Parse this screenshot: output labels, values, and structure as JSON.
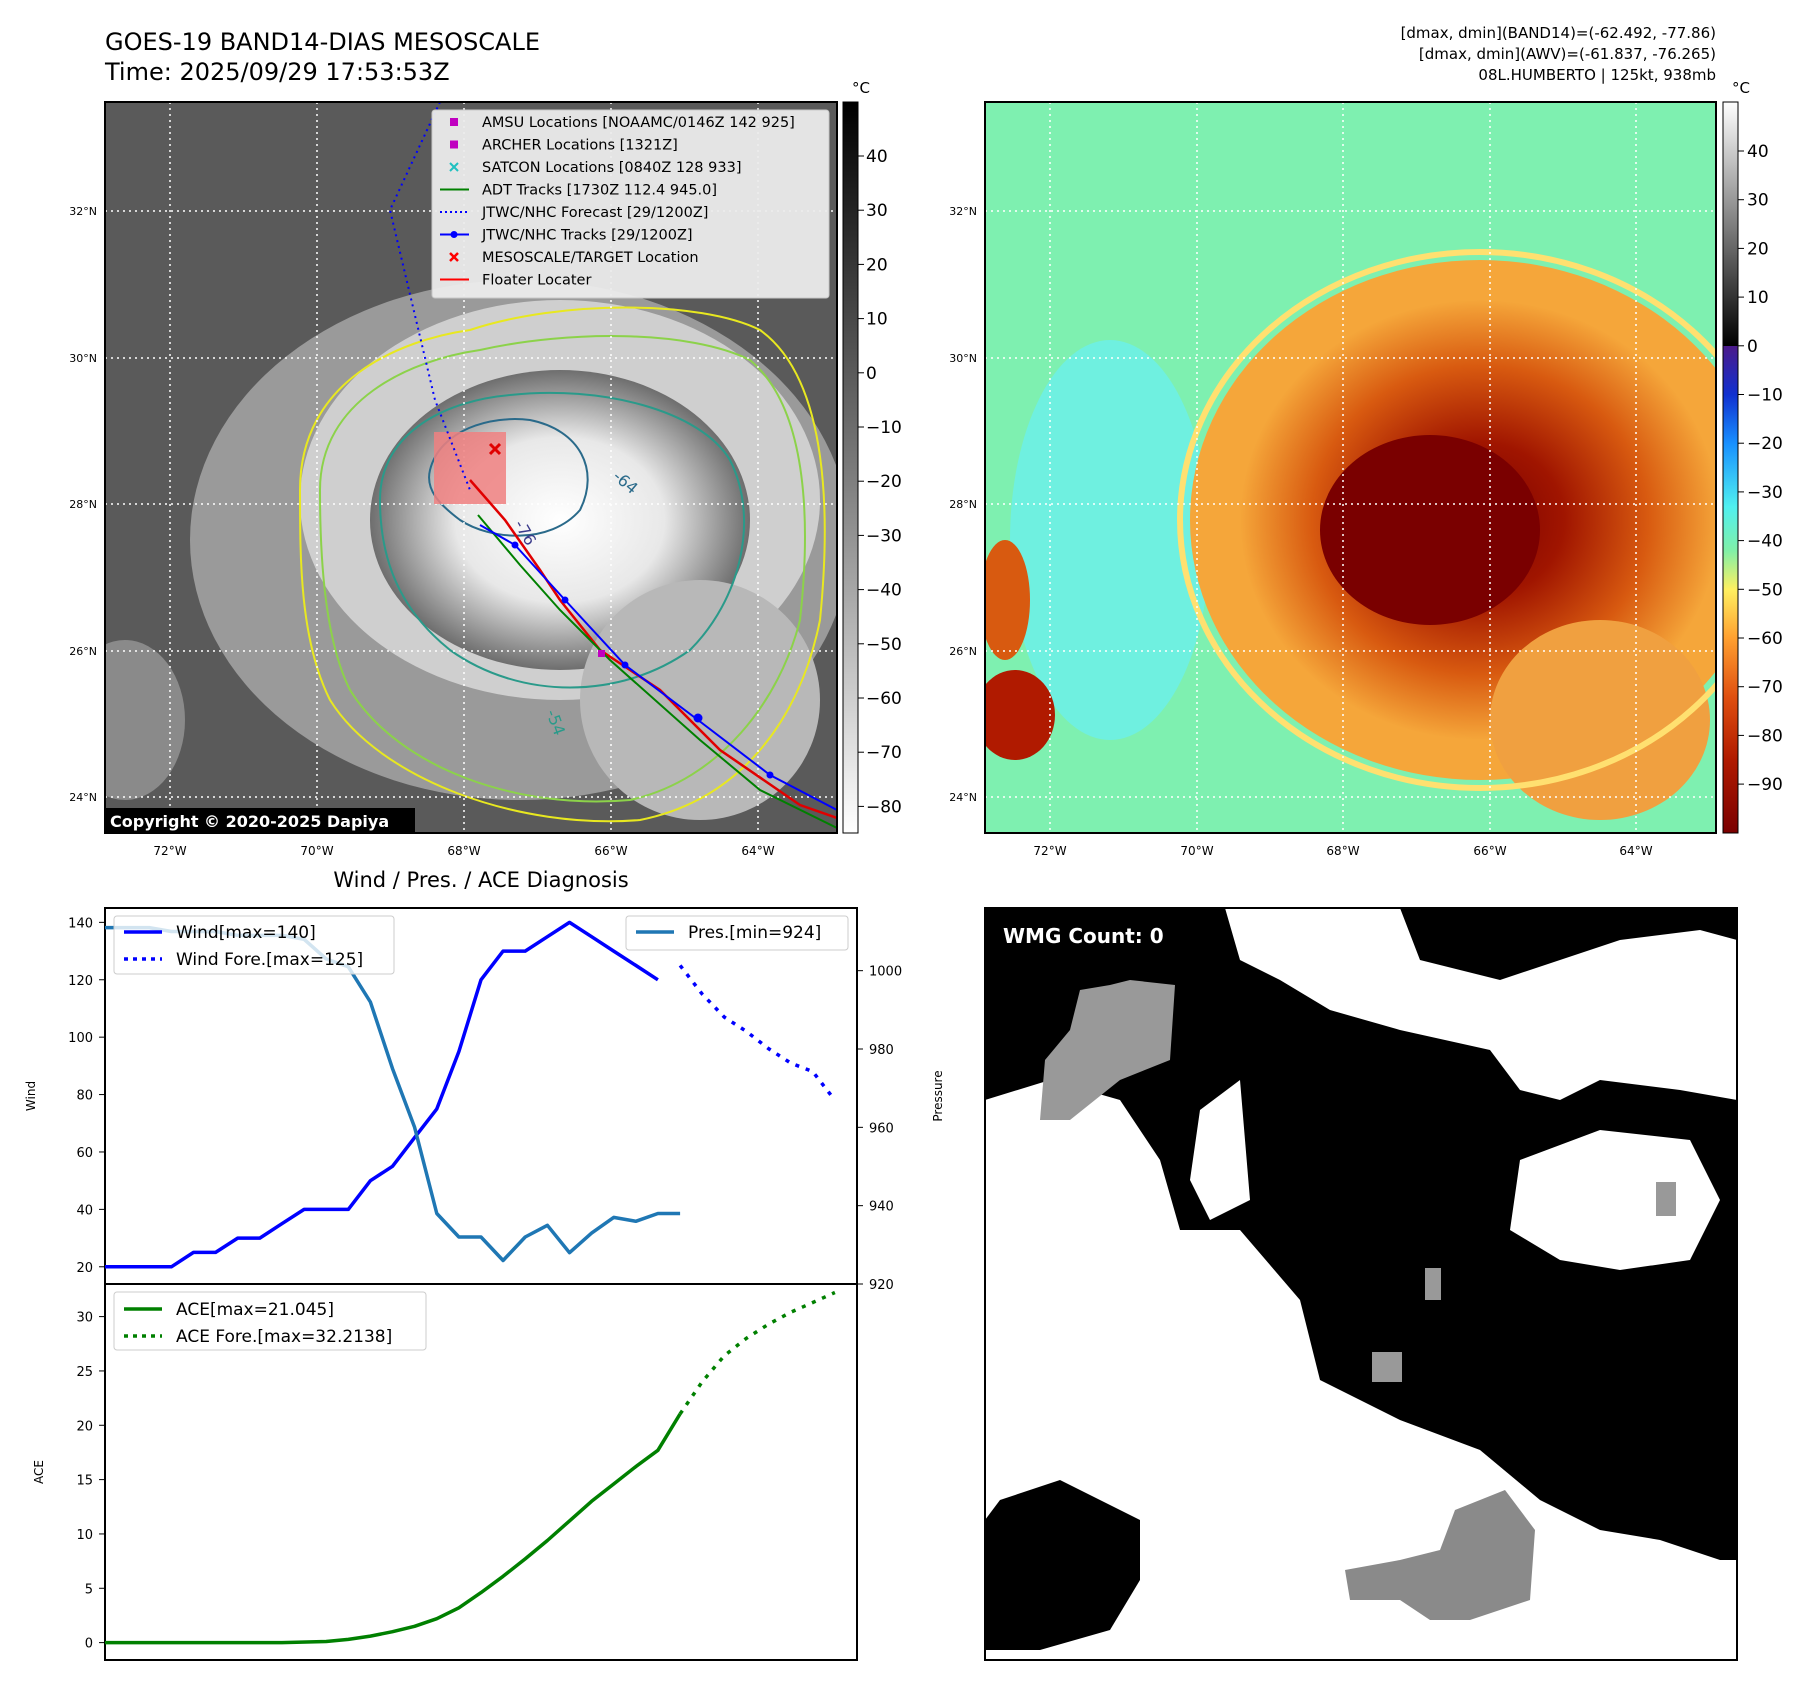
{
  "header": {
    "title_line1": "GOES-19 BAND14-DIAS MESOSCALE",
    "title_line2": "Time: 2025/09/29 17:53:53Z",
    "info_line1": "[dmax, dmin](BAND14)=(-62.492, -77.86)",
    "info_line2": "[dmax, dmin](AWV)=(-61.837, -76.265)",
    "info_line3": "08L.HUMBERTO | 125kt, 938mb"
  },
  "map": {
    "lat_labels": [
      "24°N",
      "26°N",
      "28°N",
      "30°N",
      "32°N"
    ],
    "lon_labels": [
      "72°W",
      "70°W",
      "68°W",
      "66°W",
      "64°W"
    ],
    "copyright": "Copyright © 2020-2025 Dapiya",
    "contour_labels": [
      "-64",
      "-54",
      "-76"
    ]
  },
  "legend": {
    "items": [
      {
        "label": "AMSU Locations [NOAAMC/0146Z 142 925]",
        "color": "#c000c0",
        "kind": "square"
      },
      {
        "label": "ARCHER Locations [1321Z]",
        "color": "#c000c0",
        "kind": "square"
      },
      {
        "label": "SATCON Locations [0840Z 128 933]",
        "color": "#20c0c0",
        "kind": "cross"
      },
      {
        "label": "ADT Tracks [1730Z 112.4 945.0]",
        "color": "#008000",
        "kind": "line"
      },
      {
        "label": "JTWC/NHC Forecast [29/1200Z]",
        "color": "#0000ff",
        "kind": "dotted"
      },
      {
        "label": "JTWC/NHC Tracks [29/1200Z]",
        "color": "#0000ff",
        "kind": "linedot"
      },
      {
        "label": "MESOSCALE/TARGET Location",
        "color": "#ff0000",
        "kind": "redx"
      },
      {
        "label": "Floater Locater",
        "color": "#ff0000",
        "kind": "line"
      }
    ]
  },
  "colorbar_gray": {
    "unit": "°C",
    "ticks": [
      "40",
      "30",
      "20",
      "10",
      "0",
      "−10",
      "−20",
      "−30",
      "−40",
      "−50",
      "−60",
      "−70",
      "−80"
    ]
  },
  "colorbar_color": {
    "unit": "°C",
    "ticks": [
      "40",
      "30",
      "20",
      "10",
      "0",
      "−10",
      "−20",
      "−30",
      "−40",
      "−50",
      "−60",
      "−70",
      "−80",
      "−90"
    ]
  },
  "wmg": {
    "label": "WMG Count: 0"
  },
  "chart_data": [
    {
      "type": "line",
      "title": "Wind / Pres. / ACE Diagnosis",
      "ylabel": "Wind",
      "ylabel_right": "Pressure",
      "ylim": [
        14,
        145
      ],
      "ylim_right": [
        920,
        1016
      ],
      "yticks": [
        20,
        40,
        60,
        80,
        100,
        120,
        140
      ],
      "yticks_right": [
        920,
        940,
        960,
        980,
        1000
      ],
      "x_range": [
        0,
        34
      ],
      "series": [
        {
          "name": "Wind[max=140]",
          "axis": "left",
          "color": "#0000ff",
          "style": "solid",
          "x": [
            0,
            1,
            2,
            3,
            4,
            5,
            6,
            7,
            8,
            9,
            10,
            11,
            12,
            13,
            14,
            15,
            16,
            17,
            18,
            19,
            20,
            21,
            22,
            23,
            24,
            25
          ],
          "values": [
            20,
            20,
            20,
            20,
            25,
            25,
            30,
            30,
            35,
            40,
            40,
            40,
            50,
            55,
            65,
            75,
            95,
            120,
            130,
            130,
            135,
            140,
            135,
            130,
            125,
            120
          ]
        },
        {
          "name": "Wind Fore.[max=125]",
          "axis": "left",
          "color": "#0000ff",
          "style": "dotted",
          "x": [
            26,
            27,
            28,
            29,
            30,
            31,
            32,
            33
          ],
          "values": [
            125,
            115,
            107,
            102,
            96,
            91,
            88,
            78
          ]
        },
        {
          "name": "Pres.[min=924]",
          "axis": "right",
          "color": "#1f77b4",
          "style": "solid",
          "x": [
            0,
            1,
            2,
            3,
            4,
            5,
            6,
            7,
            8,
            9,
            10,
            11,
            12,
            13,
            14,
            15,
            16,
            17,
            18,
            19,
            20,
            21,
            22,
            23,
            24,
            25,
            26
          ],
          "values": [
            1011,
            1011,
            1011,
            1010,
            1010,
            1010,
            1009,
            1009,
            1009,
            1008,
            1003,
            1001,
            992,
            975,
            960,
            938,
            932,
            932,
            926,
            932,
            935,
            928,
            933,
            937,
            936,
            938,
            938
          ]
        }
      ]
    },
    {
      "type": "line",
      "ylabel": "ACE",
      "ylim": [
        -1.6,
        33
      ],
      "yticks": [
        0,
        5,
        10,
        15,
        20,
        25,
        30
      ],
      "x_range": [
        0,
        34
      ],
      "series": [
        {
          "name": "ACE[max=21.045]",
          "color": "#008000",
          "style": "solid",
          "x": [
            0,
            2,
            4,
            6,
            8,
            10,
            11,
            12,
            13,
            14,
            15,
            16,
            17,
            18,
            19,
            20,
            21,
            22,
            23,
            24,
            25,
            26
          ],
          "values": [
            0,
            0,
            0,
            0,
            0,
            0.1,
            0.3,
            0.6,
            1.0,
            1.5,
            2.2,
            3.2,
            4.6,
            6.1,
            7.7,
            9.4,
            11.2,
            13.0,
            14.6,
            16.2,
            17.7,
            21.045
          ]
        },
        {
          "name": "ACE Fore.[max=32.2138]",
          "color": "#008000",
          "style": "dotted",
          "x": [
            26,
            27,
            28,
            29,
            30,
            31,
            32,
            33
          ],
          "values": [
            21.045,
            24.0,
            26.4,
            28.0,
            29.3,
            30.4,
            31.3,
            32.2138
          ]
        }
      ]
    }
  ]
}
